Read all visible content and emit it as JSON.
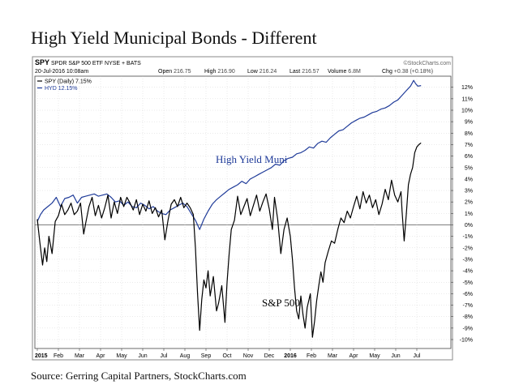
{
  "page": {
    "title": "High Yield Municipal Bonds - Different",
    "source": "Source: Gerring Capital Partners, StockCharts.com"
  },
  "header": {
    "symbol": "SPY",
    "description": "SPDR S&P 500 ETF NYSE + BATS",
    "watermark": "©StockCharts.com",
    "date": "20-Jul-2016 10:08am",
    "stats": [
      {
        "label": "Open",
        "value": "216.75"
      },
      {
        "label": "High",
        "value": "216.90"
      },
      {
        "label": "Low",
        "value": "216.24"
      },
      {
        "label": "Last",
        "value": "216.57"
      },
      {
        "label": "Volume",
        "value": "6.8M"
      },
      {
        "label": "Chg",
        "value": "+0.38 (+0.18%)"
      }
    ],
    "legend": [
      {
        "text": "SPY (Daily) 7.15%",
        "color": "#000000"
      },
      {
        "text": "HYD 12.15%",
        "color": "#1f3b99"
      }
    ]
  },
  "annotations": {
    "hyd": "High Yield Muni",
    "spy": "S&P 500"
  },
  "colors": {
    "spy": "#000000",
    "hyd": "#1f3b99",
    "zero_line": "#555555",
    "grid": "#cccccc",
    "frame": "#888888"
  },
  "chart_data": {
    "type": "line",
    "title": "High Yield Municipal Bonds - Different",
    "ylabel": "",
    "ylim": [
      -11,
      13
    ],
    "yticks": [
      "12%",
      "11%",
      "10%",
      "9%",
      "8%",
      "7%",
      "6%",
      "5%",
      "4%",
      "3%",
      "2%",
      "1%",
      "0%",
      "-1%",
      "-2%",
      "-3%",
      "-4%",
      "-5%",
      "-6%",
      "-7%",
      "-8%",
      "-9%",
      "-10%"
    ],
    "x_labels": [
      "2015",
      "Feb",
      "Mar",
      "Apr",
      "May",
      "Jun",
      "Jul",
      "Aug",
      "Sep",
      "Oct",
      "Nov",
      "Dec",
      "2016",
      "Feb",
      "Mar",
      "Apr",
      "May",
      "Jun",
      "Jul"
    ],
    "x_label_bold": [
      true,
      false,
      false,
      false,
      false,
      false,
      false,
      false,
      false,
      false,
      false,
      false,
      true,
      false,
      false,
      false,
      false,
      false,
      false
    ],
    "x_unit": "months since start of 2015",
    "series": [
      {
        "name": "SPY (Daily) 7.15%",
        "color": "#000000",
        "points": [
          [
            0,
            0.5
          ],
          [
            0.12,
            -1.5
          ],
          [
            0.25,
            -3.5
          ],
          [
            0.35,
            -2.0
          ],
          [
            0.45,
            -3.2
          ],
          [
            0.55,
            -1.0
          ],
          [
            0.7,
            -2.5
          ],
          [
            0.85,
            0.3
          ],
          [
            1.0,
            0.8
          ],
          [
            1.15,
            1.8
          ],
          [
            1.3,
            0.9
          ],
          [
            1.45,
            1.3
          ],
          [
            1.6,
            1.9
          ],
          [
            1.75,
            0.9
          ],
          [
            1.9,
            1.2
          ],
          [
            2.05,
            1.9
          ],
          [
            2.2,
            -0.8
          ],
          [
            2.3,
            0.2
          ],
          [
            2.45,
            1.6
          ],
          [
            2.6,
            2.4
          ],
          [
            2.75,
            0.8
          ],
          [
            2.9,
            1.7
          ],
          [
            3.05,
            0.6
          ],
          [
            3.2,
            1.5
          ],
          [
            3.35,
            2.6
          ],
          [
            3.5,
            0.6
          ],
          [
            3.65,
            2.0
          ],
          [
            3.8,
            1.0
          ],
          [
            3.95,
            2.4
          ],
          [
            4.1,
            1.6
          ],
          [
            4.25,
            2.4
          ],
          [
            4.4,
            1.9
          ],
          [
            4.55,
            1.3
          ],
          [
            4.7,
            2.2
          ],
          [
            4.85,
            0.9
          ],
          [
            5.0,
            1.8
          ],
          [
            5.15,
            1.2
          ],
          [
            5.3,
            2.1
          ],
          [
            5.45,
            1.0
          ],
          [
            5.6,
            1.5
          ],
          [
            5.75,
            0.7
          ],
          [
            5.9,
            1.3
          ],
          [
            6.05,
            -1.3
          ],
          [
            6.2,
            0.4
          ],
          [
            6.35,
            1.8
          ],
          [
            6.5,
            2.2
          ],
          [
            6.65,
            1.6
          ],
          [
            6.8,
            2.4
          ],
          [
            6.95,
            1.5
          ],
          [
            7.1,
            1.9
          ],
          [
            7.25,
            1.5
          ],
          [
            7.4,
            0.9
          ],
          [
            7.5,
            -2.0
          ],
          [
            7.6,
            -6.0
          ],
          [
            7.7,
            -9.2
          ],
          [
            7.8,
            -6.5
          ],
          [
            7.9,
            -4.8
          ],
          [
            8.0,
            -5.5
          ],
          [
            8.1,
            -4.0
          ],
          [
            8.2,
            -6.2
          ],
          [
            8.35,
            -4.5
          ],
          [
            8.5,
            -7.5
          ],
          [
            8.6,
            -6.8
          ],
          [
            8.75,
            -5.3
          ],
          [
            8.9,
            -8.5
          ],
          [
            9.0,
            -5.0
          ],
          [
            9.1,
            -2.5
          ],
          [
            9.2,
            -0.4
          ],
          [
            9.35,
            0.4
          ],
          [
            9.5,
            2.5
          ],
          [
            9.65,
            0.9
          ],
          [
            9.8,
            1.6
          ],
          [
            9.95,
            2.3
          ],
          [
            10.1,
            0.8
          ],
          [
            10.25,
            1.7
          ],
          [
            10.4,
            2.6
          ],
          [
            10.55,
            1.2
          ],
          [
            10.7,
            2.0
          ],
          [
            10.85,
            2.7
          ],
          [
            11.0,
            1.4
          ],
          [
            11.15,
            -0.4
          ],
          [
            11.25,
            2.4
          ],
          [
            11.4,
            0.5
          ],
          [
            11.55,
            -2.5
          ],
          [
            11.7,
            -0.4
          ],
          [
            11.85,
            0.6
          ],
          [
            12.0,
            -1.0
          ],
          [
            12.1,
            -3.0
          ],
          [
            12.2,
            -5.5
          ],
          [
            12.3,
            -7.5
          ],
          [
            12.4,
            -8.2
          ],
          [
            12.5,
            -6.2
          ],
          [
            12.6,
            -7.8
          ],
          [
            12.7,
            -9.0
          ],
          [
            12.8,
            -7.2
          ],
          [
            12.95,
            -6.0
          ],
          [
            13.05,
            -9.8
          ],
          [
            13.15,
            -8.4
          ],
          [
            13.25,
            -6.6
          ],
          [
            13.35,
            -5.3
          ],
          [
            13.45,
            -4.1
          ],
          [
            13.55,
            -5.0
          ],
          [
            13.65,
            -3.3
          ],
          [
            13.8,
            -2.3
          ],
          [
            13.95,
            -1.4
          ],
          [
            14.1,
            -1.6
          ],
          [
            14.25,
            -0.4
          ],
          [
            14.4,
            0.6
          ],
          [
            14.55,
            0.2
          ],
          [
            14.7,
            1.2
          ],
          [
            14.85,
            0.6
          ],
          [
            15.0,
            1.6
          ],
          [
            15.15,
            2.5
          ],
          [
            15.3,
            1.4
          ],
          [
            15.45,
            2.9
          ],
          [
            15.6,
            1.9
          ],
          [
            15.75,
            2.6
          ],
          [
            15.9,
            1.5
          ],
          [
            16.05,
            2.2
          ],
          [
            16.2,
            0.9
          ],
          [
            16.35,
            1.8
          ],
          [
            16.5,
            3.1
          ],
          [
            16.65,
            2.2
          ],
          [
            16.8,
            3.9
          ],
          [
            16.95,
            2.6
          ],
          [
            17.1,
            2.0
          ],
          [
            17.25,
            2.9
          ],
          [
            17.3,
            1.2
          ],
          [
            17.4,
            -1.4
          ],
          [
            17.5,
            0.9
          ],
          [
            17.6,
            3.5
          ],
          [
            17.7,
            4.4
          ],
          [
            17.8,
            5.0
          ],
          [
            17.9,
            6.3
          ],
          [
            18.0,
            6.8
          ],
          [
            18.1,
            7.0
          ],
          [
            18.2,
            7.15
          ]
        ]
      },
      {
        "name": "HYD 12.15%",
        "color": "#1f3b99",
        "points": [
          [
            0,
            0.3
          ],
          [
            0.15,
            0.9
          ],
          [
            0.3,
            1.3
          ],
          [
            0.5,
            1.6
          ],
          [
            0.7,
            1.9
          ],
          [
            0.9,
            2.4
          ],
          [
            1.1,
            1.6
          ],
          [
            1.3,
            2.3
          ],
          [
            1.5,
            2.4
          ],
          [
            1.7,
            2.6
          ],
          [
            1.9,
            1.9
          ],
          [
            2.1,
            2.4
          ],
          [
            2.3,
            2.5
          ],
          [
            2.5,
            2.6
          ],
          [
            2.7,
            2.7
          ],
          [
            2.9,
            2.5
          ],
          [
            3.1,
            2.6
          ],
          [
            3.3,
            2.7
          ],
          [
            3.5,
            2.4
          ],
          [
            3.7,
            2.0
          ],
          [
            3.9,
            2.1
          ],
          [
            4.1,
            1.7
          ],
          [
            4.3,
            2.0
          ],
          [
            4.5,
            1.6
          ],
          [
            4.7,
            1.5
          ],
          [
            4.9,
            1.9
          ],
          [
            5.1,
            1.7
          ],
          [
            5.3,
            1.4
          ],
          [
            5.5,
            1.6
          ],
          [
            5.7,
            1.2
          ],
          [
            5.9,
            1.0
          ],
          [
            6.1,
            0.9
          ],
          [
            6.3,
            1.3
          ],
          [
            6.5,
            1.5
          ],
          [
            6.7,
            1.7
          ],
          [
            6.9,
            1.9
          ],
          [
            7.1,
            1.6
          ],
          [
            7.3,
            1.0
          ],
          [
            7.5,
            0.4
          ],
          [
            7.7,
            -0.4
          ],
          [
            7.9,
            0.5
          ],
          [
            8.1,
            1.2
          ],
          [
            8.3,
            1.8
          ],
          [
            8.5,
            2.2
          ],
          [
            8.7,
            2.5
          ],
          [
            8.9,
            2.8
          ],
          [
            9.1,
            3.1
          ],
          [
            9.3,
            3.3
          ],
          [
            9.5,
            3.5
          ],
          [
            9.7,
            3.8
          ],
          [
            9.9,
            3.6
          ],
          [
            10.1,
            4.0
          ],
          [
            10.3,
            4.2
          ],
          [
            10.5,
            4.4
          ],
          [
            10.7,
            4.6
          ],
          [
            10.9,
            4.8
          ],
          [
            11.1,
            5.0
          ],
          [
            11.3,
            5.3
          ],
          [
            11.5,
            5.2
          ],
          [
            11.7,
            5.6
          ],
          [
            11.9,
            5.8
          ],
          [
            12.1,
            5.9
          ],
          [
            12.3,
            6.2
          ],
          [
            12.5,
            6.3
          ],
          [
            12.7,
            6.5
          ],
          [
            12.9,
            6.8
          ],
          [
            13.1,
            6.7
          ],
          [
            13.3,
            7.1
          ],
          [
            13.5,
            7.3
          ],
          [
            13.7,
            7.2
          ],
          [
            13.9,
            7.6
          ],
          [
            14.1,
            7.9
          ],
          [
            14.3,
            8.2
          ],
          [
            14.5,
            8.3
          ],
          [
            14.7,
            8.6
          ],
          [
            14.9,
            8.9
          ],
          [
            15.1,
            9.1
          ],
          [
            15.3,
            9.3
          ],
          [
            15.5,
            9.4
          ],
          [
            15.7,
            9.6
          ],
          [
            15.9,
            9.8
          ],
          [
            16.1,
            9.9
          ],
          [
            16.3,
            10.1
          ],
          [
            16.5,
            10.2
          ],
          [
            16.7,
            10.4
          ],
          [
            16.9,
            10.7
          ],
          [
            17.1,
            10.9
          ],
          [
            17.3,
            11.3
          ],
          [
            17.5,
            11.7
          ],
          [
            17.7,
            12.1
          ],
          [
            17.85,
            12.6
          ],
          [
            17.95,
            12.3
          ],
          [
            18.05,
            12.1
          ],
          [
            18.2,
            12.15
          ]
        ]
      }
    ]
  }
}
